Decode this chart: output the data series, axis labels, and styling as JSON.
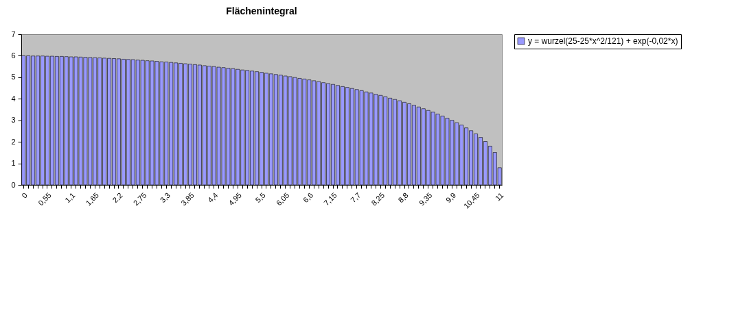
{
  "chart_data": {
    "type": "bar",
    "title": "Flächenintegral",
    "categories": [
      "0",
      null,
      null,
      null,
      null,
      "0,55",
      null,
      null,
      null,
      null,
      "1,1",
      null,
      null,
      null,
      null,
      "1,65",
      null,
      null,
      null,
      null,
      "2,2",
      null,
      null,
      null,
      null,
      "2,75",
      null,
      null,
      null,
      null,
      "3,3",
      null,
      null,
      null,
      null,
      "3,85",
      null,
      null,
      null,
      null,
      "4,4",
      null,
      null,
      null,
      null,
      "4,95",
      null,
      null,
      null,
      null,
      "5,5",
      null,
      null,
      null,
      null,
      "6,05",
      null,
      null,
      null,
      null,
      "6,6",
      null,
      null,
      null,
      null,
      "7,15",
      null,
      null,
      null,
      null,
      "7,7",
      null,
      null,
      null,
      null,
      "8,25",
      null,
      null,
      null,
      null,
      "8,8",
      null,
      null,
      null,
      null,
      "9,35",
      null,
      null,
      null,
      null,
      "9,9",
      null,
      null,
      null,
      null,
      "10,45",
      null,
      null,
      null,
      null,
      "11"
    ],
    "series": [
      {
        "name": "y = wurzel(25-25*x^2/121) + exp(-0,02*x)",
        "color": "#9999ff",
        "values": [
          6.0,
          6.0,
          5.99,
          5.99,
          5.99,
          5.98,
          5.98,
          5.97,
          5.97,
          5.96,
          5.95,
          5.95,
          5.94,
          5.93,
          5.92,
          5.91,
          5.9,
          5.89,
          5.88,
          5.87,
          5.86,
          5.84,
          5.83,
          5.82,
          5.8,
          5.79,
          5.77,
          5.76,
          5.74,
          5.72,
          5.71,
          5.69,
          5.67,
          5.65,
          5.63,
          5.61,
          5.59,
          5.57,
          5.54,
          5.52,
          5.5,
          5.47,
          5.45,
          5.42,
          5.4,
          5.37,
          5.34,
          5.32,
          5.29,
          5.26,
          5.23,
          5.19,
          5.16,
          5.13,
          5.1,
          5.06,
          5.03,
          4.99,
          4.95,
          4.92,
          4.88,
          4.84,
          4.8,
          4.75,
          4.71,
          4.67,
          4.62,
          4.57,
          4.53,
          4.48,
          4.43,
          4.38,
          4.32,
          4.27,
          4.21,
          4.16,
          4.1,
          4.03,
          3.97,
          3.91,
          3.84,
          3.77,
          3.7,
          3.62,
          3.54,
          3.46,
          3.38,
          3.29,
          3.2,
          3.1,
          3.0,
          2.89,
          2.78,
          2.65,
          2.52,
          2.37,
          2.21,
          2.02,
          1.8,
          1.51,
          0.8
        ]
      }
    ],
    "ylim": [
      0,
      7
    ],
    "yticks": [
      0,
      1,
      2,
      3,
      4,
      5,
      6,
      7
    ],
    "legend": "right"
  }
}
